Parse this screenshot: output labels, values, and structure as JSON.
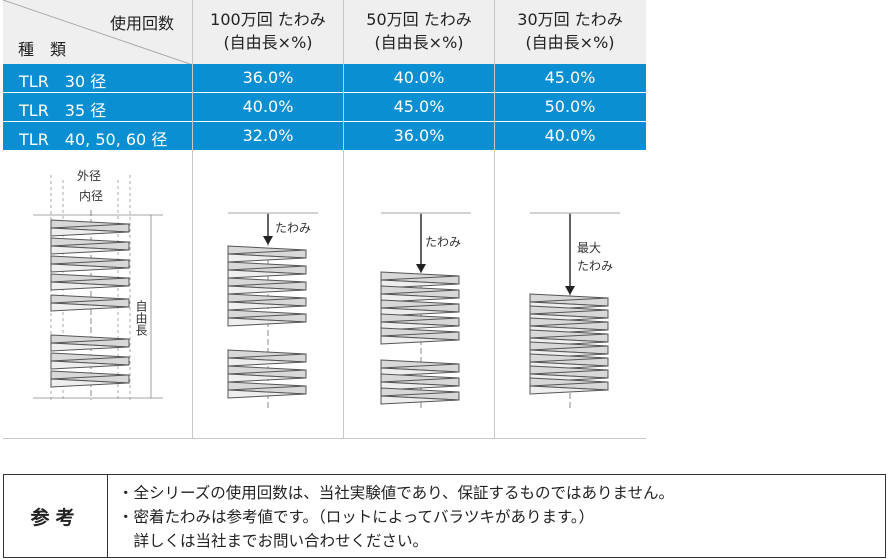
{
  "header": {
    "corner_top": "使用回数",
    "corner_bottom": "種　類",
    "columns": [
      {
        "line1": "100万回 たわみ",
        "line2": "(自由長×%)"
      },
      {
        "line1": "50万回 たわみ",
        "line2": "(自由長×%)"
      },
      {
        "line1": "30万回 たわみ",
        "line2": "(自由長×%)"
      }
    ]
  },
  "rows": [
    {
      "label": "TLR　30 径",
      "values": [
        "36.0%",
        "40.0%",
        "45.0%"
      ]
    },
    {
      "label": "TLR　35 径",
      "values": [
        "40.0%",
        "45.0%",
        "50.0%"
      ]
    },
    {
      "label": "TLR　40, 50, 60 径",
      "values": [
        "32.0%",
        "36.0%",
        "40.0%"
      ]
    }
  ],
  "diagram": {
    "outer_diameter": "外径",
    "inner_diameter": "内径",
    "free_length": "自由長",
    "deflection": "たわみ",
    "max_deflection_line1": "最大",
    "max_deflection_line2": "たわみ"
  },
  "note": {
    "title": "参考",
    "lines": [
      "・全シリーズの使用回数は、当社実験値であり、保証するものではありません。",
      "・密着たわみは参考値です。（ロットによってバラツキがあります。）",
      "　詳しくは当社までお問い合わせください。"
    ]
  },
  "colors": {
    "row_bg": "#0a8fd2",
    "header_bg": "#efefef"
  }
}
